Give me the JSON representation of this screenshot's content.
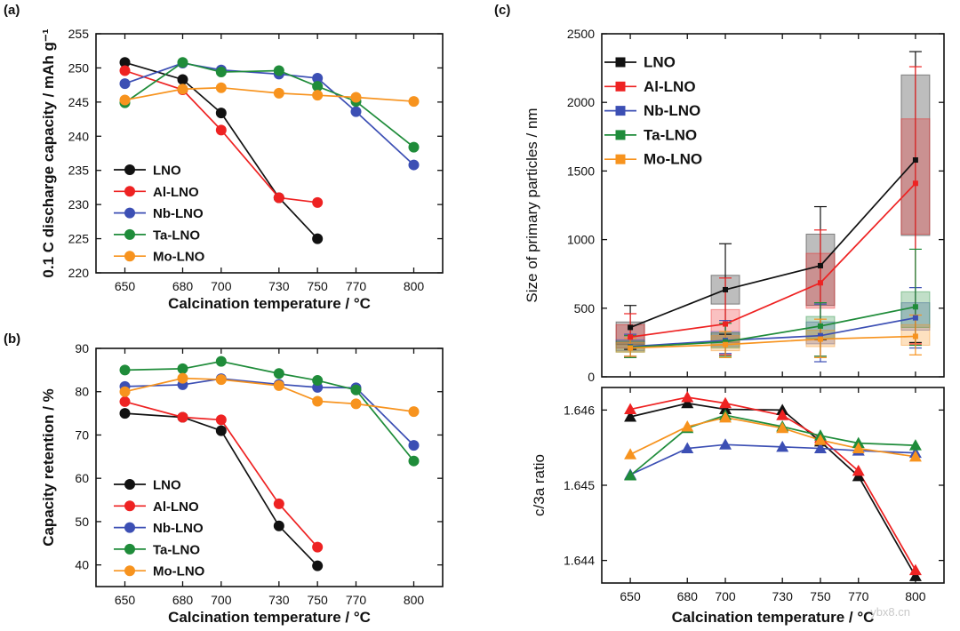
{
  "chart_data": [
    {
      "panel": "(a)",
      "type": "line",
      "xlabel": "Calcination temperature / °C",
      "ylabel": "0.1 C discharge capacity / mAh g⁻¹",
      "x_ticks": [
        650,
        680,
        700,
        730,
        750,
        770,
        800
      ],
      "xlim": [
        635,
        815
      ],
      "ylim": [
        220,
        255
      ],
      "y_ticks": [
        220,
        225,
        230,
        235,
        240,
        245,
        250,
        255
      ],
      "legend": "lower-left",
      "series": [
        {
          "name": "LNO",
          "color": "#111111",
          "x": [
            650,
            680,
            700,
            730,
            750
          ],
          "y": [
            250.8,
            248.3,
            243.4,
            231.0,
            225.0
          ]
        },
        {
          "name": "Al-LNO",
          "color": "#ee2222",
          "x": [
            650,
            680,
            700,
            730,
            750
          ],
          "y": [
            249.6,
            246.8,
            240.9,
            231.0,
            230.3
          ]
        },
        {
          "name": "Nb-LNO",
          "color": "#3c4fb4",
          "x": [
            650,
            680,
            700,
            730,
            750,
            770,
            800
          ],
          "y": [
            247.7,
            250.7,
            249.7,
            249.1,
            248.5,
            243.6,
            235.8
          ]
        },
        {
          "name": "Ta-LNO",
          "color": "#1f8c3a",
          "x": [
            650,
            680,
            700,
            730,
            750,
            770,
            800
          ],
          "y": [
            244.9,
            250.8,
            249.4,
            249.6,
            247.3,
            245.1,
            238.4
          ]
        },
        {
          "name": "Mo-LNO",
          "color": "#f7931e",
          "x": [
            650,
            680,
            700,
            730,
            750,
            770,
            800
          ],
          "y": [
            245.3,
            246.9,
            247.1,
            246.3,
            246.0,
            245.7,
            245.1
          ]
        }
      ]
    },
    {
      "panel": "(b)",
      "type": "line",
      "xlabel": "Calcination temperature / °C",
      "ylabel": "Capacity retention / %",
      "x_ticks": [
        650,
        680,
        700,
        730,
        750,
        770,
        800
      ],
      "xlim": [
        635,
        815
      ],
      "ylim": [
        35,
        90
      ],
      "y_ticks": [
        40,
        50,
        60,
        70,
        80,
        90
      ],
      "legend": "lower-left",
      "series": [
        {
          "name": "LNO",
          "color": "#111111",
          "x": [
            650,
            680,
            700,
            730,
            750
          ],
          "y": [
            75.0,
            74.1,
            71.0,
            49.0,
            39.8
          ]
        },
        {
          "name": "Al-LNO",
          "color": "#ee2222",
          "x": [
            650,
            680,
            700,
            730,
            750
          ],
          "y": [
            77.7,
            74.1,
            73.5,
            54.1,
            44.1
          ]
        },
        {
          "name": "Nb-LNO",
          "color": "#3c4fb4",
          "x": [
            650,
            680,
            700,
            730,
            750,
            770,
            800
          ],
          "y": [
            81.2,
            81.6,
            83.0,
            81.7,
            81.0,
            80.9,
            67.6
          ]
        },
        {
          "name": "Ta-LNO",
          "color": "#1f8c3a",
          "x": [
            650,
            680,
            700,
            730,
            750,
            770,
            800
          ],
          "y": [
            85.0,
            85.3,
            87.0,
            84.2,
            82.6,
            80.4,
            64.0
          ]
        },
        {
          "name": "Mo-LNO",
          "color": "#f7931e",
          "x": [
            650,
            680,
            700,
            730,
            750,
            770,
            800
          ],
          "y": [
            80.0,
            83.1,
            82.8,
            81.4,
            77.8,
            77.2,
            75.4
          ]
        }
      ]
    },
    {
      "panel": "(c) top",
      "type": "line",
      "xlabel": "",
      "ylabel": "Size of primary particles / nm",
      "x_ticks": [
        650,
        680,
        700,
        730,
        750,
        770,
        800
      ],
      "xlim": [
        635,
        815
      ],
      "ylim": [
        0,
        2500
      ],
      "y_ticks": [
        0,
        500,
        1000,
        1500,
        2000,
        2500
      ],
      "legend": "top-left",
      "series": [
        {
          "name": "LNO",
          "color": "#111111",
          "x": [
            650,
            700,
            750,
            800
          ],
          "y": [
            360,
            635,
            810,
            1580
          ],
          "err_low": [
            200,
            310,
            270,
            250
          ],
          "err_high": [
            520,
            970,
            1240,
            2370
          ],
          "box_low": [
            235,
            530,
            520,
            1030
          ],
          "box_high": [
            400,
            740,
            1040,
            2200
          ]
        },
        {
          "name": "Al-LNO",
          "color": "#ee2222",
          "x": [
            650,
            700,
            750,
            800
          ],
          "y": [
            290,
            385,
            685,
            1410
          ],
          "err_low": [
            140,
            160,
            150,
            240
          ],
          "err_high": [
            460,
            720,
            1070,
            2260
          ],
          "box_low": [
            210,
            250,
            500,
            1040
          ],
          "box_high": [
            380,
            490,
            900,
            1880
          ]
        },
        {
          "name": "Nb-LNO",
          "color": "#3c4fb4",
          "x": [
            650,
            700,
            750,
            800
          ],
          "y": [
            220,
            265,
            300,
            430
          ],
          "err_low": [
            150,
            170,
            110,
            210
          ],
          "err_high": [
            310,
            410,
            530,
            650
          ],
          "box_low": [
            190,
            220,
            240,
            340
          ],
          "box_high": [
            270,
            330,
            400,
            540
          ]
        },
        {
          "name": "Ta-LNO",
          "color": "#1f8c3a",
          "x": [
            650,
            700,
            750,
            800
          ],
          "y": [
            215,
            255,
            370,
            510
          ],
          "err_low": [
            140,
            150,
            150,
            230
          ],
          "err_high": [
            300,
            390,
            540,
            930
          ],
          "box_low": [
            180,
            210,
            280,
            360
          ],
          "box_high": [
            260,
            320,
            440,
            620
          ]
        },
        {
          "name": "Mo-LNO",
          "color": "#f7931e",
          "x": [
            650,
            700,
            750,
            800
          ],
          "y": [
            210,
            235,
            275,
            295
          ],
          "err_low": [
            150,
            140,
            140,
            160
          ],
          "err_high": [
            280,
            330,
            420,
            450
          ],
          "box_low": [
            180,
            190,
            220,
            230
          ],
          "box_high": [
            250,
            300,
            340,
            380
          ]
        }
      ]
    },
    {
      "panel": "(c) bottom",
      "type": "line",
      "xlabel": "Calcination temperature / °C",
      "ylabel": "c/3a ratio",
      "x_ticks": [
        650,
        680,
        700,
        730,
        750,
        770,
        800
      ],
      "xlim": [
        635,
        815
      ],
      "ylim": [
        1.6437,
        1.6463
      ],
      "y_ticks": [
        1.644,
        1.645,
        1.646
      ],
      "series": [
        {
          "name": "LNO",
          "color": "#111111",
          "x": [
            650,
            680,
            700,
            730,
            750,
            770,
            800
          ],
          "y": [
            1.64591,
            1.64609,
            1.64601,
            1.646,
            1.64558,
            1.64512,
            1.64379
          ]
        },
        {
          "name": "Al-LNO",
          "color": "#ee2222",
          "x": [
            650,
            680,
            700,
            730,
            750,
            770,
            800
          ],
          "y": [
            1.64601,
            1.64617,
            1.64609,
            1.64593,
            1.64563,
            1.64519,
            1.64387
          ]
        },
        {
          "name": "Nb-LNO",
          "color": "#3c4fb4",
          "x": [
            650,
            680,
            700,
            730,
            750,
            770,
            800
          ],
          "y": [
            1.64514,
            1.64549,
            1.64554,
            1.64551,
            1.64549,
            1.64546,
            1.64543
          ]
        },
        {
          "name": "Ta-LNO",
          "color": "#1f8c3a",
          "x": [
            650,
            680,
            700,
            730,
            750,
            770,
            800
          ],
          "y": [
            1.64513,
            1.64576,
            1.64593,
            1.64578,
            1.64566,
            1.64556,
            1.64553
          ]
        },
        {
          "name": "Mo-LNO",
          "color": "#f7931e",
          "x": [
            650,
            680,
            700,
            730,
            750,
            770,
            800
          ],
          "y": [
            1.64541,
            1.64578,
            1.6459,
            1.64576,
            1.6456,
            1.64549,
            1.64538
          ]
        }
      ]
    }
  ],
  "labels": {
    "panel_a": "(a)",
    "panel_b": "(b)",
    "panel_c": "(c)",
    "watermark": "ybx8.cn"
  }
}
